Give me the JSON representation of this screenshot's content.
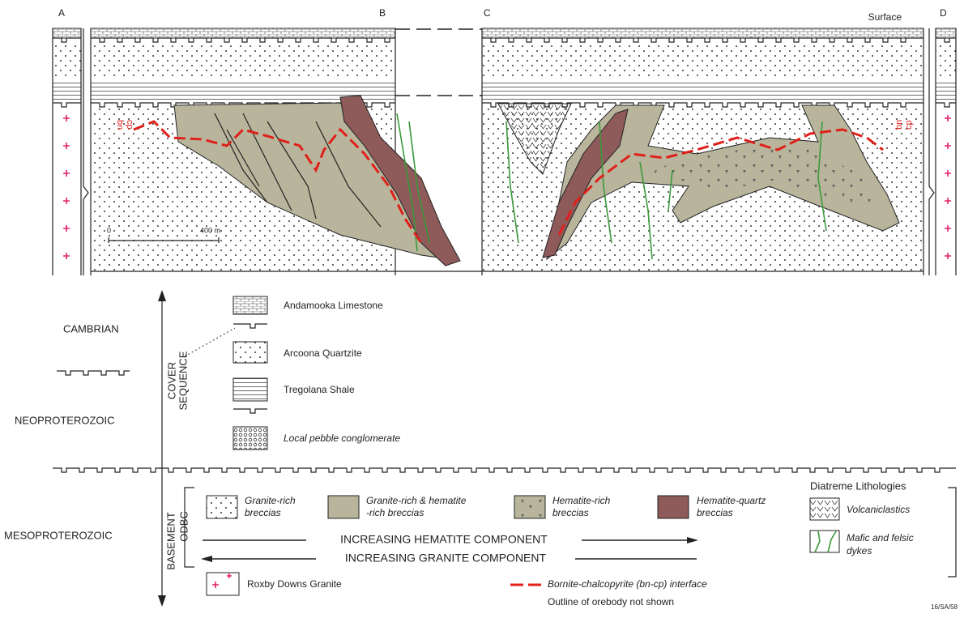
{
  "section": {
    "labels": {
      "a": "A",
      "b": "B",
      "c": "C",
      "d": "D"
    },
    "surface": "Surface",
    "scale": {
      "start": "0",
      "end": "400 m"
    },
    "interface_tags": [
      [
        "bn",
        "cp"
      ],
      [
        "bn",
        "cp"
      ]
    ]
  },
  "ages": {
    "cambrian": "CAMBRIAN",
    "neoproterozoic": "NEOPROTEROZOIC",
    "mesoproterozoic": "MESOPROTEROZOIC"
  },
  "groups": {
    "cover": [
      "COVER",
      "SEQUENCE"
    ],
    "basement": "BASEMENT",
    "odbc": "ODBC"
  },
  "cover_legend": [
    "Andamooka Limestone",
    "Arcoona Quartzite",
    "Tregolana Shale",
    "Local pebble conglomerate"
  ],
  "basement_legend": [
    [
      "Granite-rich",
      "breccias"
    ],
    [
      "Granite-rich & hematite",
      "-rich breccias"
    ],
    [
      "Hematite-rich",
      "breccias"
    ],
    [
      "Hematite-quartz",
      "breccias"
    ]
  ],
  "diatreme": {
    "title": "Diatreme Lithologies",
    "items": [
      [
        "Volcaniclastics"
      ],
      [
        "Mafic and felsic",
        "dykes"
      ]
    ]
  },
  "arrows": {
    "hematite": "INCREASING HEMATITE COMPONENT",
    "granite": "INCREASING GRANITE COMPONENT"
  },
  "granite": "Roxby Downs Granite",
  "interface": {
    "label": "Bornite-chalcopyrite (bn-cp) interface",
    "note": "Outline of orebody not shown"
  },
  "figure_id": "16/SA/58"
}
